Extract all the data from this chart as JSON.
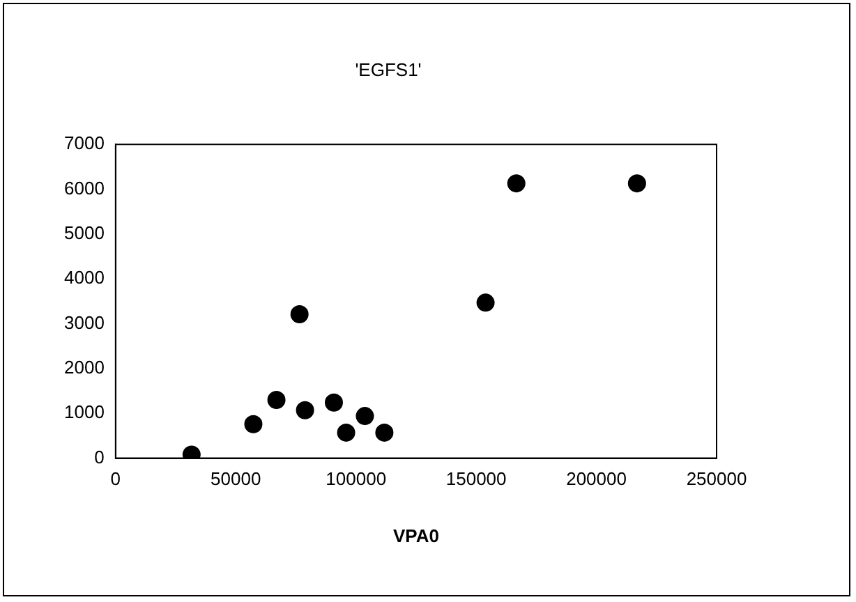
{
  "chart_data": {
    "type": "scatter",
    "title": "'EGFS1'",
    "xlabel": "VPA0",
    "x": [
      31600,
      57300,
      66900,
      76500,
      78800,
      90800,
      95900,
      103700,
      111800,
      153900,
      166700,
      216900
    ],
    "series": [
      {
        "color": "#000000",
        "values": [
          80,
          760,
          1300,
          3210,
          1070,
          1240,
          570,
          940,
          570,
          3470,
          6130,
          6130
        ]
      }
    ],
    "xlim": [
      0,
      250000
    ],
    "xticks": [
      0,
      50000,
      100000,
      150000,
      200000,
      250000
    ],
    "ylim": [
      0,
      7000
    ],
    "yticks": [
      0,
      1000,
      2000,
      3000,
      4000,
      5000,
      6000,
      7000
    ],
    "grid": false,
    "legend": false,
    "marker": "circle"
  }
}
